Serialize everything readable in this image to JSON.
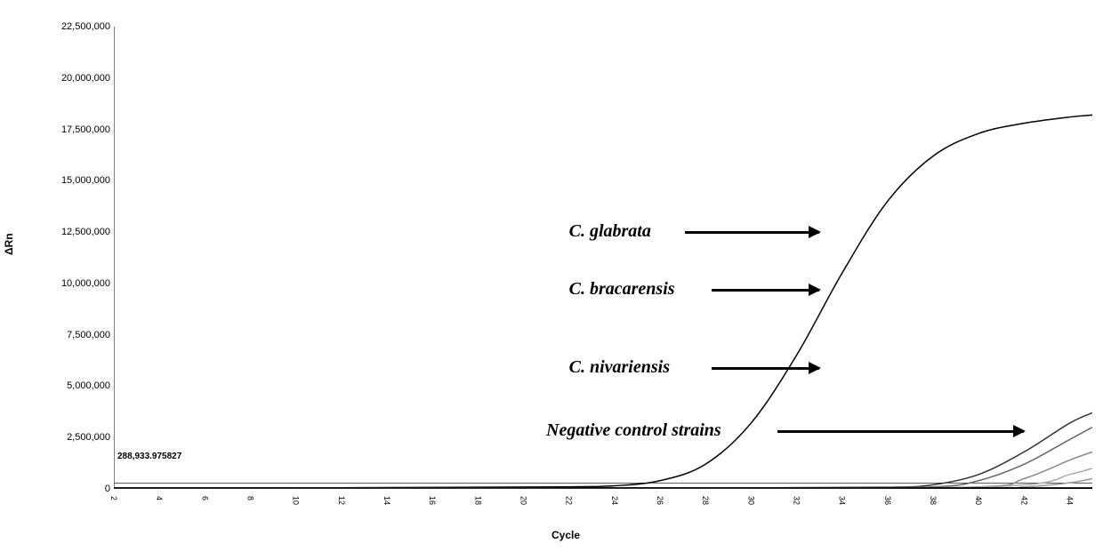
{
  "chart": {
    "type": "line",
    "background_color": "#ffffff",
    "ylabel": "ΔRn",
    "xlabel": "Cycle",
    "label_fontsize": 12,
    "ylim": [
      0,
      22500000
    ],
    "xlim": [
      2,
      45
    ],
    "y_ticks": [
      {
        "value": 0,
        "label": "0"
      },
      {
        "value": 2500000,
        "label": "2,500,000"
      },
      {
        "value": 5000000,
        "label": "5,000,000"
      },
      {
        "value": 7500000,
        "label": "7,500,000"
      },
      {
        "value": 10000000,
        "label": "10,000,000"
      },
      {
        "value": 12500000,
        "label": "12,500,000"
      },
      {
        "value": 15000000,
        "label": "15,000,000"
      },
      {
        "value": 17500000,
        "label": "17,500,000"
      },
      {
        "value": 20000000,
        "label": "20,000,000"
      },
      {
        "value": 22500000,
        "label": "22,500,000"
      }
    ],
    "x_ticks": [
      {
        "value": 2,
        "label": "2"
      },
      {
        "value": 4,
        "label": "4"
      },
      {
        "value": 6,
        "label": "6"
      },
      {
        "value": 8,
        "label": "8"
      },
      {
        "value": 10,
        "label": "10"
      },
      {
        "value": 12,
        "label": "12"
      },
      {
        "value": 14,
        "label": "14"
      },
      {
        "value": 16,
        "label": "16"
      },
      {
        "value": 18,
        "label": "18"
      },
      {
        "value": 20,
        "label": "20"
      },
      {
        "value": 22,
        "label": "22"
      },
      {
        "value": 24,
        "label": "24"
      },
      {
        "value": 26,
        "label": "26"
      },
      {
        "value": 28,
        "label": "28"
      },
      {
        "value": 30,
        "label": "30"
      },
      {
        "value": 32,
        "label": "32"
      },
      {
        "value": 34,
        "label": "34"
      },
      {
        "value": 36,
        "label": "36"
      },
      {
        "value": 38,
        "label": "38"
      },
      {
        "value": 40,
        "label": "40"
      },
      {
        "value": 42,
        "label": "42"
      },
      {
        "value": 44,
        "label": "44"
      }
    ],
    "threshold_label": "288,933.975827",
    "threshold_value": 288933,
    "axis_color": "#000000",
    "line_width": 1.5,
    "annotations": [
      {
        "text": "C. glabrata",
        "cycle": 22,
        "rn": 12500000,
        "arrow_to_cycle": 33
      },
      {
        "text": "C. bracarensis",
        "cycle": 22,
        "rn": 9700000,
        "arrow_to_cycle": 33
      },
      {
        "text": "C. nivariensis",
        "cycle": 22,
        "rn": 5900000,
        "arrow_to_cycle": 33
      },
      {
        "text": "Negative control strains",
        "cycle": 21,
        "rn": 2800000,
        "arrow_to_cycle": 42
      }
    ],
    "series": [
      {
        "name": "C. glabrata",
        "color": "#000000",
        "points": [
          {
            "x": 2,
            "y": 50000
          },
          {
            "x": 10,
            "y": 50000
          },
          {
            "x": 18,
            "y": 80000
          },
          {
            "x": 22,
            "y": 100000
          },
          {
            "x": 24,
            "y": 150000
          },
          {
            "x": 26,
            "y": 400000
          },
          {
            "x": 28,
            "y": 1200000
          },
          {
            "x": 30,
            "y": 3200000
          },
          {
            "x": 32,
            "y": 6500000
          },
          {
            "x": 34,
            "y": 10500000
          },
          {
            "x": 36,
            "y": 14000000
          },
          {
            "x": 38,
            "y": 16200000
          },
          {
            "x": 40,
            "y": 17300000
          },
          {
            "x": 42,
            "y": 17800000
          },
          {
            "x": 44,
            "y": 18100000
          },
          {
            "x": 45,
            "y": 18200000
          }
        ]
      },
      {
        "name": "C. bracarensis",
        "color": "#333333",
        "points": [
          {
            "x": 2,
            "y": 50000
          },
          {
            "x": 20,
            "y": 50000
          },
          {
            "x": 30,
            "y": 50000
          },
          {
            "x": 36,
            "y": 80000
          },
          {
            "x": 38,
            "y": 200000
          },
          {
            "x": 40,
            "y": 700000
          },
          {
            "x": 42,
            "y": 1800000
          },
          {
            "x": 44,
            "y": 3200000
          },
          {
            "x": 45,
            "y": 3700000
          }
        ]
      },
      {
        "name": "C. nivariensis",
        "color": "#666666",
        "points": [
          {
            "x": 2,
            "y": 50000
          },
          {
            "x": 20,
            "y": 50000
          },
          {
            "x": 32,
            "y": 50000
          },
          {
            "x": 38,
            "y": 100000
          },
          {
            "x": 40,
            "y": 400000
          },
          {
            "x": 42,
            "y": 1200000
          },
          {
            "x": 44,
            "y": 2400000
          },
          {
            "x": 45,
            "y": 3000000
          }
        ]
      },
      {
        "name": "Negative1",
        "color": "#888888",
        "points": [
          {
            "x": 2,
            "y": 50000
          },
          {
            "x": 30,
            "y": 50000
          },
          {
            "x": 40,
            "y": 100000
          },
          {
            "x": 42,
            "y": 500000
          },
          {
            "x": 44,
            "y": 1400000
          },
          {
            "x": 45,
            "y": 1800000
          }
        ]
      },
      {
        "name": "Negative2",
        "color": "#aaaaaa",
        "points": [
          {
            "x": 2,
            "y": 50000
          },
          {
            "x": 35,
            "y": 50000
          },
          {
            "x": 42,
            "y": 200000
          },
          {
            "x": 44,
            "y": 700000
          },
          {
            "x": 45,
            "y": 1000000
          }
        ]
      },
      {
        "name": "Negative3",
        "color": "#999999",
        "points": [
          {
            "x": 2,
            "y": 50000
          },
          {
            "x": 38,
            "y": 50000
          },
          {
            "x": 42,
            "y": 100000
          },
          {
            "x": 44,
            "y": 300000
          },
          {
            "x": 45,
            "y": 500000
          }
        ]
      },
      {
        "name": "baseline",
        "color": "#000000",
        "points": [
          {
            "x": 2,
            "y": 50000
          },
          {
            "x": 45,
            "y": 50000
          }
        ]
      }
    ]
  }
}
